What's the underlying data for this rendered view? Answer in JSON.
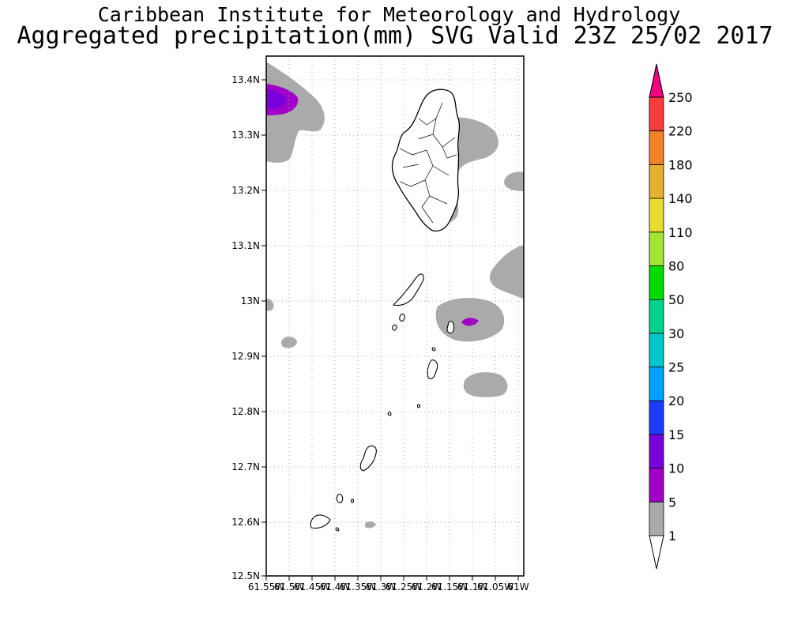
{
  "title_line1": "Caribbean Institute for Meteorology and Hydrology",
  "title_line2": "Aggregated precipitation(mm) SVG Valid 23Z 25/02 2017",
  "map": {
    "lat_ticks": [
      "13.4N",
      "13.3N",
      "13.2N",
      "13.1N",
      "13N",
      "12.9N",
      "12.8N",
      "12.7N",
      "12.6N",
      "12.5N"
    ],
    "lon_ticks": [
      "61.55W",
      "61.5W",
      "61.45W",
      "61.4W",
      "61.35W",
      "61.3W",
      "61.25W",
      "61.2W",
      "61.15W",
      "61.1W",
      "61.05W",
      "61W"
    ],
    "lat_range": [
      12.5,
      13.44
    ],
    "lon_range": [
      -61.55,
      -61.0
    ]
  },
  "colorbar": {
    "levels": [
      "1",
      "5",
      "10",
      "15",
      "20",
      "25",
      "30",
      "50",
      "80",
      "110",
      "140",
      "180",
      "220",
      "250"
    ],
    "colors": [
      "#aaaaaa",
      "#a000c8",
      "#7800dc",
      "#1e3cff",
      "#00a0ff",
      "#00c8c8",
      "#00d28c",
      "#00dc00",
      "#a0e632",
      "#e6dc32",
      "#e6af2d",
      "#f08228",
      "#fa3c3c",
      "#f00082"
    ]
  }
}
